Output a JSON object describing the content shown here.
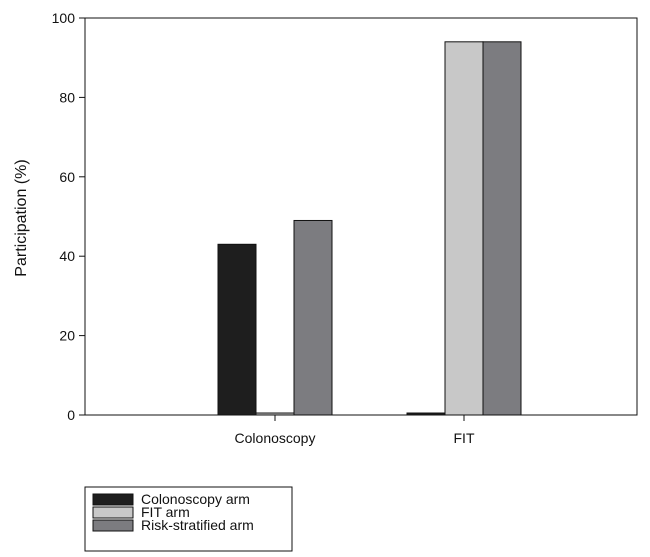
{
  "chart_data": {
    "type": "bar",
    "title": "",
    "xlabel": "",
    "ylabel": "Participation (%)",
    "ylim": [
      0,
      100
    ],
    "yticks": [
      0,
      20,
      40,
      60,
      80,
      100
    ],
    "categories": [
      "Colonoscopy",
      "FIT"
    ],
    "series": [
      {
        "name": "Colonoscopy arm",
        "values": [
          43,
          0.5
        ],
        "color": "#1e1e1e"
      },
      {
        "name": "FIT arm",
        "values": [
          0.5,
          94
        ],
        "color": "#c8c8c8"
      },
      {
        "name": "Risk-stratified arm",
        "values": [
          49,
          94
        ],
        "color": "#7c7c80"
      }
    ],
    "grid": false,
    "legend_position": "bottom-left"
  }
}
